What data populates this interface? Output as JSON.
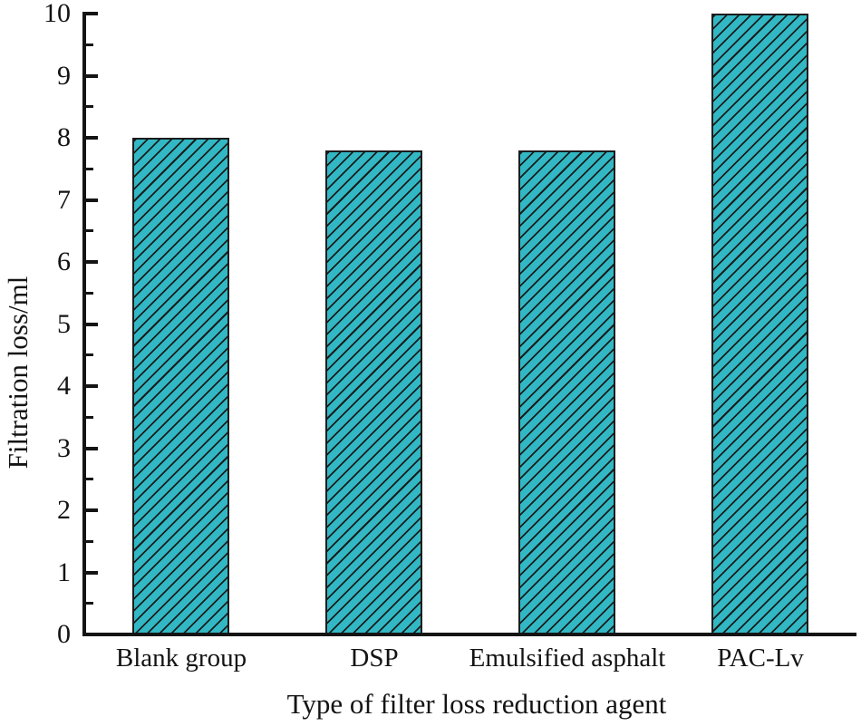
{
  "figure": {
    "background_color": "#ffffff",
    "text_color": "#141414"
  },
  "chart_data": {
    "type": "bar",
    "title": "",
    "categories": [
      "Blank group",
      "DSP",
      "Emulsified asphalt",
      "PAC-Lv"
    ],
    "values": [
      8.0,
      7.8,
      7.8,
      10.0
    ],
    "xlabel": "Type of filter loss reduction agent",
    "ylabel": "Filtration loss/ml",
    "ylim": [
      0,
      10
    ],
    "ytick_step": 1,
    "ytick_minor_step": 0.5,
    "ytick_labels": [
      "0",
      "1",
      "2",
      "3",
      "4",
      "5",
      "6",
      "7",
      "8",
      "9",
      "10"
    ],
    "grid": false,
    "legend": "none",
    "tick_direction": "in",
    "bar_fill_color": "#31b8c4",
    "bar_hatch": "forward-diagonal",
    "bar_hatch_color": "#1c1c1c",
    "bar_edge_color": "#1c1c1c",
    "axis_color": "#141414"
  }
}
